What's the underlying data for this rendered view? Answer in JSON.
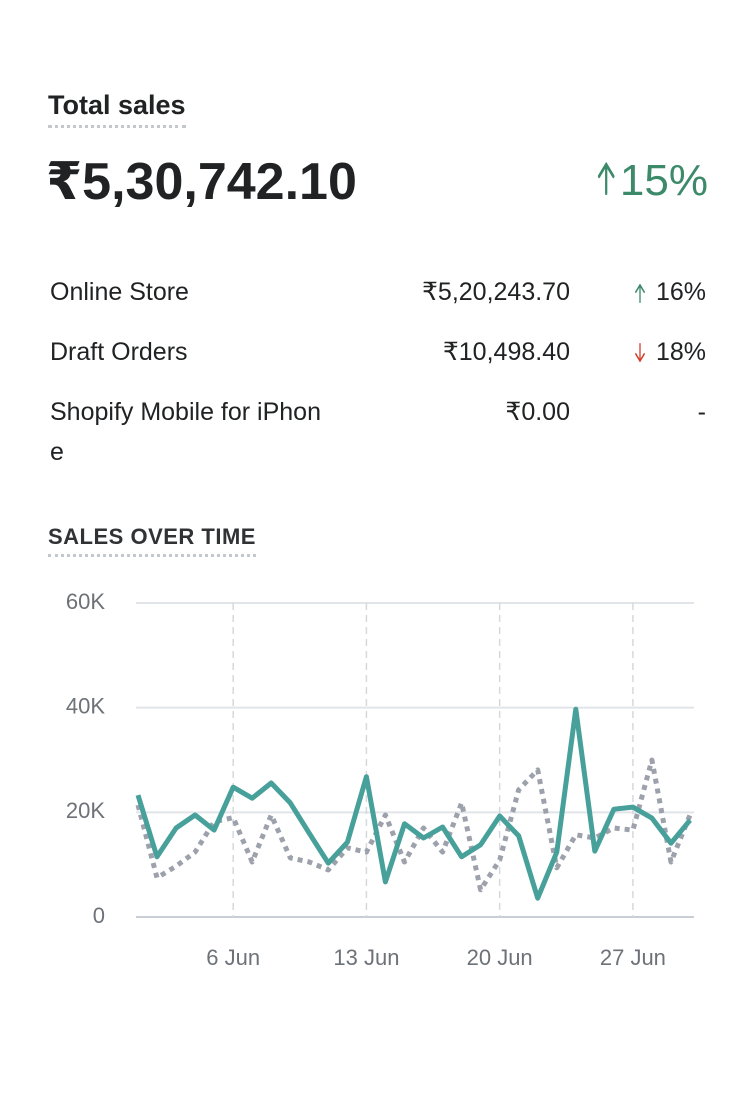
{
  "header": {
    "title": "Total sales",
    "total": "₹5,30,742.10",
    "change": "15%",
    "direction": "up"
  },
  "breakdown": {
    "rows": [
      {
        "label": "Online Store",
        "value": "₹5,20,243.70",
        "change": "16%",
        "direction": "up"
      },
      {
        "label": "Draft Orders",
        "value": "₹10,498.40",
        "change": "18%",
        "direction": "down"
      },
      {
        "label": "Shopify Mobile for iPhone",
        "value": "₹0.00",
        "change": "-"
      }
    ]
  },
  "chart_data": {
    "type": "line",
    "title": "SALES OVER TIME",
    "categories": [
      null,
      null,
      null,
      null,
      null,
      "6 Jun",
      null,
      null,
      null,
      null,
      null,
      null,
      "13 Jun",
      null,
      null,
      null,
      null,
      null,
      null,
      "20 Jun",
      null,
      null,
      null,
      null,
      null,
      null,
      "27 Jun",
      null,
      null,
      null
    ],
    "series": [
      {
        "color": "#47a09a",
        "style": "solid",
        "values": [
          23300,
          11500,
          17000,
          19500,
          16600,
          24800,
          22700,
          25600,
          21800,
          16000,
          10300,
          14300,
          26800,
          6700,
          17800,
          15100,
          17200,
          11500,
          13800,
          19300,
          15500,
          3600,
          12400,
          39700,
          12600,
          20600,
          21000,
          18900,
          14100,
          18500
        ]
      },
      {
        "color": "#9ca1ab",
        "style": "dotted",
        "values": [
          21400,
          7500,
          9700,
          12400,
          18200,
          19000,
          10500,
          19500,
          11300,
          10500,
          9000,
          13200,
          12400,
          19500,
          10500,
          17000,
          12400,
          21800,
          5200,
          10900,
          24300,
          28100,
          9400,
          15700,
          15100,
          17000,
          16600,
          30000,
          10500,
          19500
        ]
      }
    ],
    "ylim": [
      0,
      60000
    ],
    "yticks": [
      0,
      {
        "value": 20000,
        "label": "20K"
      },
      {
        "value": 40000,
        "label": "40K"
      },
      {
        "value": 60000,
        "label": "60K"
      }
    ],
    "grid": true
  }
}
